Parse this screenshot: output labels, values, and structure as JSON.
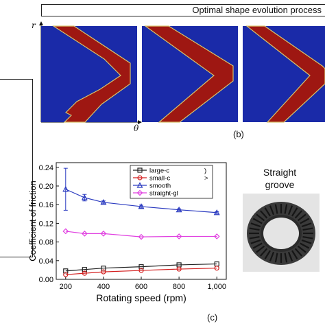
{
  "header": {
    "title": "Optimal shape evolution process"
  },
  "shape_panel": {
    "r_symbol": "r",
    "theta_symbol": "θ",
    "label": "(b)",
    "colors": {
      "background": "#1a2aa8",
      "groove": "#9e1712",
      "border": "#d7c26a"
    }
  },
  "friction_panel": {
    "label": "(c)",
    "chart_data": {
      "type": "line",
      "xlabel": "Rotating speed  (rpm)",
      "ylabel": "Coefficient of friction",
      "xlim": [
        150,
        1050
      ],
      "ylim": [
        0,
        0.25
      ],
      "x_ticks": [
        "200",
        "400",
        "600",
        "800",
        "1,000"
      ],
      "y_ticks": [
        "0.00",
        "0.04",
        "0.08",
        "0.12",
        "0.16",
        "0.20",
        "0.24"
      ],
      "x": [
        200,
        300,
        400,
        600,
        800,
        1000
      ],
      "series": [
        {
          "name": "large-c",
          "color": "#222222",
          "marker": "square",
          "values": [
            0.018,
            0.021,
            0.024,
            0.027,
            0.031,
            0.033
          ]
        },
        {
          "name": "small-c",
          "color": "#d42020",
          "marker": "circle",
          "values": [
            0.01,
            0.013,
            0.016,
            0.019,
            0.022,
            0.024
          ]
        },
        {
          "name": "smooth",
          "color": "#2b3bc0",
          "marker": "triangle",
          "values": [
            0.193,
            0.175,
            0.165,
            0.156,
            0.149,
            0.143
          ],
          "errors": [
            0.045,
            0.007,
            0.003,
            0.003,
            0.002,
            0.002
          ]
        },
        {
          "name": "straight-gl",
          "color": "#e040e0",
          "marker": "diamond",
          "values": [
            0.103,
            0.098,
            0.098,
            0.091,
            0.092,
            0.092
          ]
        }
      ],
      "legend_symbols": [
        ")",
        ">",
        "",
        ""
      ],
      "legend_position": "top-right",
      "grid": false
    }
  },
  "groove_panel": {
    "title_line1": "Straight",
    "title_line2": "groove"
  }
}
